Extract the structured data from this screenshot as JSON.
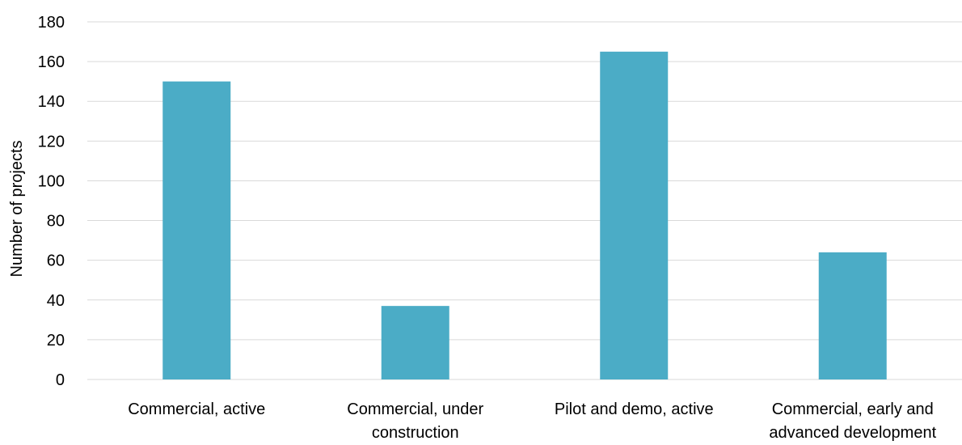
{
  "chart_data": {
    "type": "bar",
    "categories": [
      [
        "Commercial, active"
      ],
      [
        "Commercial, under",
        "construction"
      ],
      [
        "Pilot and demo, active"
      ],
      [
        "Commercial, early and",
        "advanced development"
      ]
    ],
    "values": [
      150,
      37,
      165,
      64
    ],
    "ylabel": "Number of projects",
    "ylim": [
      0,
      180
    ],
    "yticks": [
      0,
      20,
      40,
      60,
      80,
      100,
      120,
      140,
      160,
      180
    ],
    "grid": true,
    "bar_color": "#4bacc6"
  }
}
